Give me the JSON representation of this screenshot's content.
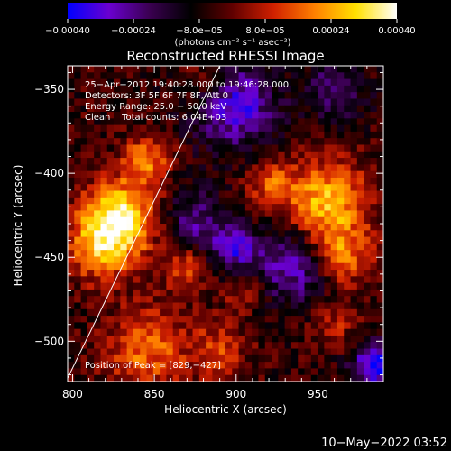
{
  "chart_data": {
    "type": "heatmap",
    "title": "Reconstructed RHESSI Image",
    "xlabel": "Heliocentric X (arcsec)",
    "ylabel": "Heliocentric Y (arcsec)",
    "xlim": [
      797,
      990
    ],
    "ylim": [
      -524,
      -336
    ],
    "x_ticks": [
      800,
      850,
      900,
      950
    ],
    "y_ticks": [
      -350,
      -400,
      -450,
      -500
    ],
    "x_tick_labels": [
      "800",
      "850",
      "900",
      "950"
    ],
    "y_tick_labels": [
      "−350",
      "−400",
      "−450",
      "−500"
    ],
    "colorbar": {
      "min": -0.0004,
      "max": 0.0004,
      "tick_labels": [
        "−0.00040",
        "−0.00024",
        "−8.0e−05",
        "8.0e−05",
        "0.00024",
        "0.00040"
      ],
      "units_label": "(photons cm⁻² s⁻¹ asec⁻²)",
      "colormap": [
        "#0000ff",
        "#6a00d0",
        "#3a0050",
        "#000000",
        "#600000",
        "#d02000",
        "#ff8000",
        "#ffe000",
        "#ffffff"
      ]
    },
    "annotations": {
      "time_range": "25−Apr−2012 19:40:28.000 to 19:46:28.000",
      "detectors": "Detectors: 3F 5F 6F 7F 8F, Att 0",
      "energy": "Energy Range: 25.0 − 50.0 keV",
      "clean": "Clean    Total counts: 6.04E+03",
      "peak": "Position of Peak = [829,−427]"
    },
    "peak": [
      829,
      -427
    ],
    "limb_line": [
      [
        797,
        -522
      ],
      [
        890,
        -336
      ]
    ],
    "sources": [
      {
        "x": 829,
        "y": -427,
        "sigma": 16,
        "amp": 1.0
      },
      {
        "x": 845,
        "y": -392,
        "sigma": 10,
        "amp": 0.6
      },
      {
        "x": 815,
        "y": -445,
        "sigma": 14,
        "amp": 0.55
      },
      {
        "x": 955,
        "y": -418,
        "sigma": 18,
        "amp": 0.8
      },
      {
        "x": 920,
        "y": -405,
        "sigma": 10,
        "amp": 0.45
      },
      {
        "x": 965,
        "y": -450,
        "sigma": 12,
        "amp": 0.55
      },
      {
        "x": 845,
        "y": -505,
        "sigma": 18,
        "amp": 0.55
      },
      {
        "x": 890,
        "y": -505,
        "sigma": 12,
        "amp": 0.4
      },
      {
        "x": 870,
        "y": -455,
        "sigma": 10,
        "amp": 0.45
      },
      {
        "x": 905,
        "y": -470,
        "sigma": 8,
        "amp": 0.35
      },
      {
        "x": 960,
        "y": -490,
        "sigma": 10,
        "amp": 0.3
      },
      {
        "x": 880,
        "y": -345,
        "sigma": 10,
        "amp": 0.3
      }
    ],
    "negatives": [
      {
        "x": 900,
        "y": -360,
        "sigma": 18,
        "amp": 0.7
      },
      {
        "x": 875,
        "y": -430,
        "sigma": 14,
        "amp": 0.5
      },
      {
        "x": 935,
        "y": -455,
        "sigma": 16,
        "amp": 0.6
      },
      {
        "x": 985,
        "y": -515,
        "sigma": 10,
        "amp": 0.9
      },
      {
        "x": 900,
        "y": -445,
        "sigma": 10,
        "amp": 0.6
      },
      {
        "x": 960,
        "y": -350,
        "sigma": 14,
        "amp": 0.4
      }
    ]
  },
  "footer": {
    "date_stamp": "10−May−2022 03:52"
  }
}
